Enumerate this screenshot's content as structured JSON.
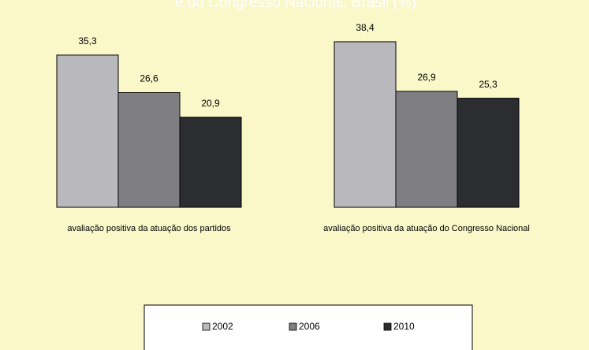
{
  "chart_data": {
    "type": "bar",
    "title": "e do Congresso Nacional, Brasil (%)",
    "categories": [
      "avaliação positiva da atuação dos partidos",
      "avaliação positiva da atuação do Congresso Nacional"
    ],
    "series": [
      {
        "name": "2002",
        "color": "#b9b9bd",
        "values": [
          35.3,
          38.4
        ],
        "value_labels": [
          "35,3",
          "38,4"
        ]
      },
      {
        "name": "2006",
        "color": "#7f7f83",
        "values": [
          26.6,
          26.9
        ],
        "value_labels": [
          "26,6",
          "26,9"
        ]
      },
      {
        "name": "2010",
        "color": "#2b2d30",
        "values": [
          20.9,
          25.3
        ],
        "value_labels": [
          "20,9",
          "25,3"
        ]
      }
    ]
  }
}
